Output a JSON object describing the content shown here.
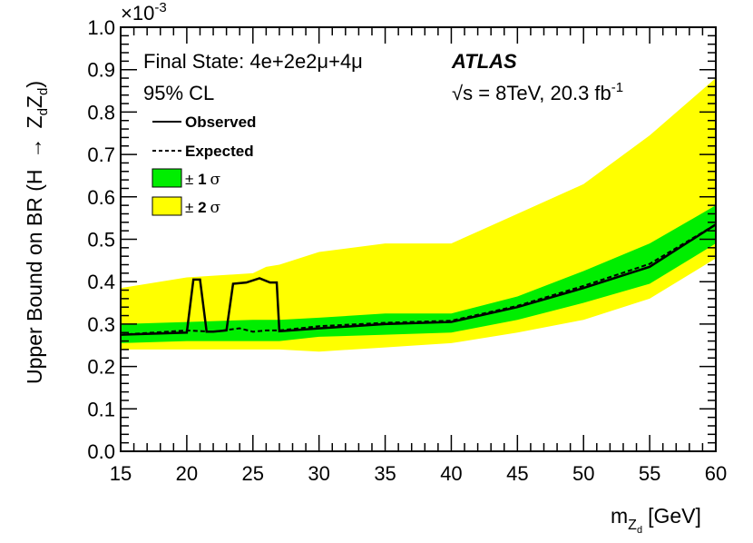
{
  "chart_data": {
    "type": "line",
    "title": "",
    "xlabel_main": "m",
    "xlabel_sub": "Z",
    "xlabel_subsub": "d",
    "xlabel_unit": "[GeV]",
    "ylabel_main": "Upper Bound on BR (H",
    "ylabel_arrow": "→",
    "ylabel_z1": "Z",
    "ylabel_z1sub": "d",
    "ylabel_z2": "Z",
    "ylabel_z2sub": "d",
    "ylabel_close": ")",
    "y_multiplier_base": "×10",
    "y_multiplier_exp": "-3",
    "xlim": [
      15,
      60
    ],
    "ylim": [
      0.0,
      1.0
    ],
    "x_ticks": [
      15,
      20,
      25,
      30,
      35,
      40,
      45,
      50,
      55,
      60
    ],
    "x_tick_labels": [
      "15",
      "20",
      "25",
      "30",
      "35",
      "40",
      "45",
      "50",
      "55",
      "60"
    ],
    "y_ticks": [
      0.0,
      0.1,
      0.2,
      0.3,
      0.4,
      0.5,
      0.6,
      0.7,
      0.8,
      0.9,
      1.0
    ],
    "y_tick_labels": [
      "0.0",
      "0.1",
      "0.2",
      "0.3",
      "0.4",
      "0.5",
      "0.6",
      "0.7",
      "0.8",
      "0.9",
      "1.0"
    ],
    "grid": false,
    "legend_position": "top-left",
    "legend": {
      "observed": "Observed",
      "expected": "Expected",
      "band1_prefix": "± ",
      "band1_num": "1",
      "band1_sym": "σ",
      "band2_prefix": "± ",
      "band2_num": "2",
      "band2_sym": "σ"
    },
    "annotations": {
      "final_state": "Final State: 4e+2e2μ+4μ",
      "cl": "95% CL",
      "experiment": "ATLAS",
      "sqrt_sym": "√s",
      "energy": " = 8TeV, 20.3 fb",
      "lumi_exp": "-1"
    },
    "colors": {
      "band2": "#ffff00",
      "band1": "#00ee00",
      "observed": "#000000",
      "expected": "#000000"
    },
    "series": [
      {
        "name": "Observed",
        "style": "solid",
        "x": [
          15,
          20,
          20.5,
          21,
          21.5,
          22,
          23,
          23.5,
          24.5,
          25.5,
          26.3,
          26.8,
          27,
          30,
          35,
          40,
          45,
          50,
          55,
          60
        ],
        "y": [
          0.275,
          0.28,
          0.405,
          0.405,
          0.282,
          0.282,
          0.285,
          0.395,
          0.398,
          0.408,
          0.398,
          0.398,
          0.283,
          0.29,
          0.3,
          0.305,
          0.34,
          0.385,
          0.435,
          0.535
        ]
      },
      {
        "name": "Expected",
        "style": "dashed",
        "x": [
          15,
          20,
          22,
          24,
          25,
          26,
          27,
          30,
          35,
          40,
          45,
          50,
          55,
          60
        ],
        "y": [
          0.275,
          0.285,
          0.282,
          0.29,
          0.282,
          0.285,
          0.285,
          0.295,
          0.303,
          0.308,
          0.343,
          0.39,
          0.442,
          0.535
        ]
      },
      {
        "name": "± 1 σ",
        "style": "band",
        "x": [
          15,
          20,
          25,
          27,
          30,
          35,
          40,
          45,
          50,
          55,
          60
        ],
        "upper": [
          0.3,
          0.305,
          0.31,
          0.31,
          0.315,
          0.325,
          0.325,
          0.365,
          0.425,
          0.49,
          0.58
        ],
        "lower": [
          0.255,
          0.26,
          0.26,
          0.26,
          0.27,
          0.275,
          0.28,
          0.31,
          0.35,
          0.395,
          0.49
        ]
      },
      {
        "name": "± 2 σ",
        "style": "band",
        "x": [
          15,
          20,
          25,
          26,
          27,
          30,
          35,
          40,
          45,
          50,
          55,
          60
        ],
        "upper": [
          0.385,
          0.41,
          0.42,
          0.435,
          0.44,
          0.47,
          0.49,
          0.49,
          0.56,
          0.63,
          0.745,
          0.88
        ],
        "lower": [
          0.24,
          0.24,
          0.24,
          0.24,
          0.24,
          0.235,
          0.245,
          0.255,
          0.28,
          0.31,
          0.36,
          0.455
        ]
      }
    ]
  }
}
